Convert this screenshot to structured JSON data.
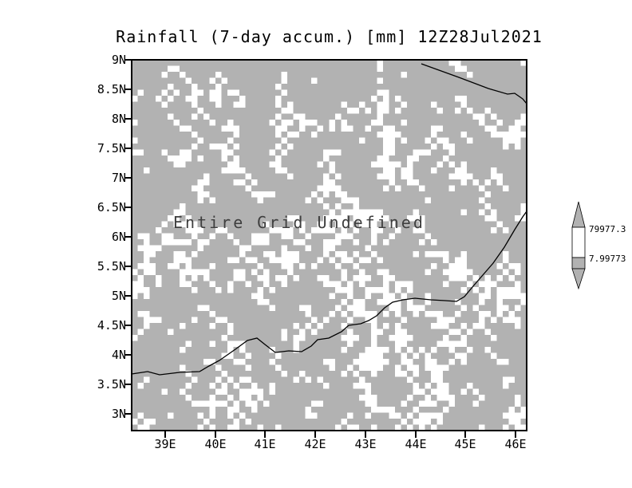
{
  "title": "Rainfall (7-day accum.) [mm] 12Z28Jul2021",
  "plot": {
    "overlay_text": "Entire Grid Undefined",
    "y_ticks": [
      "9N",
      "8.5N",
      "8N",
      "7.5N",
      "7N",
      "6.5N",
      "6N",
      "5.5N",
      "5N",
      "4.5N",
      "4N",
      "3.5N",
      "3N"
    ],
    "x_ticks": [
      "39E",
      "40E",
      "41E",
      "42E",
      "43E",
      "44E",
      "45E",
      "46E"
    ]
  },
  "colorbar": {
    "max_label": "79977.3",
    "min_label": "7.99773"
  },
  "colors": {
    "undefined_fill": "#b2b2b2",
    "speckle": "#ffffff",
    "line": "#000000"
  },
  "chart_data": {
    "type": "heatmap",
    "title": "Rainfall (7-day accum.) [mm] 12Z28Jul2021",
    "variable": "Rainfall (7-day accum.)",
    "units": "mm",
    "valid_time": "12Z28Jul2021",
    "x_ticks": [
      "39E",
      "40E",
      "41E",
      "42E",
      "43E",
      "44E",
      "45E",
      "46E"
    ],
    "y_ticks": [
      "9N",
      "8.5N",
      "8N",
      "7.5N",
      "7N",
      "6.5N",
      "6N",
      "5.5N",
      "5N",
      "4.5N",
      "4N",
      "3.5N",
      "3N"
    ],
    "xlim": [
      "38.3E",
      "46.2E"
    ],
    "ylim": [
      "2.7N",
      "9N"
    ],
    "values": "undefined (all grid points missing — mask rendered as gray/white speckle)",
    "annotation": "Entire Grid Undefined",
    "colorbar_labels": [
      "79977.3",
      "7.99773"
    ],
    "legend_position": "right",
    "grid": false,
    "map_overlay": "coastline/border lines drawn in black"
  }
}
